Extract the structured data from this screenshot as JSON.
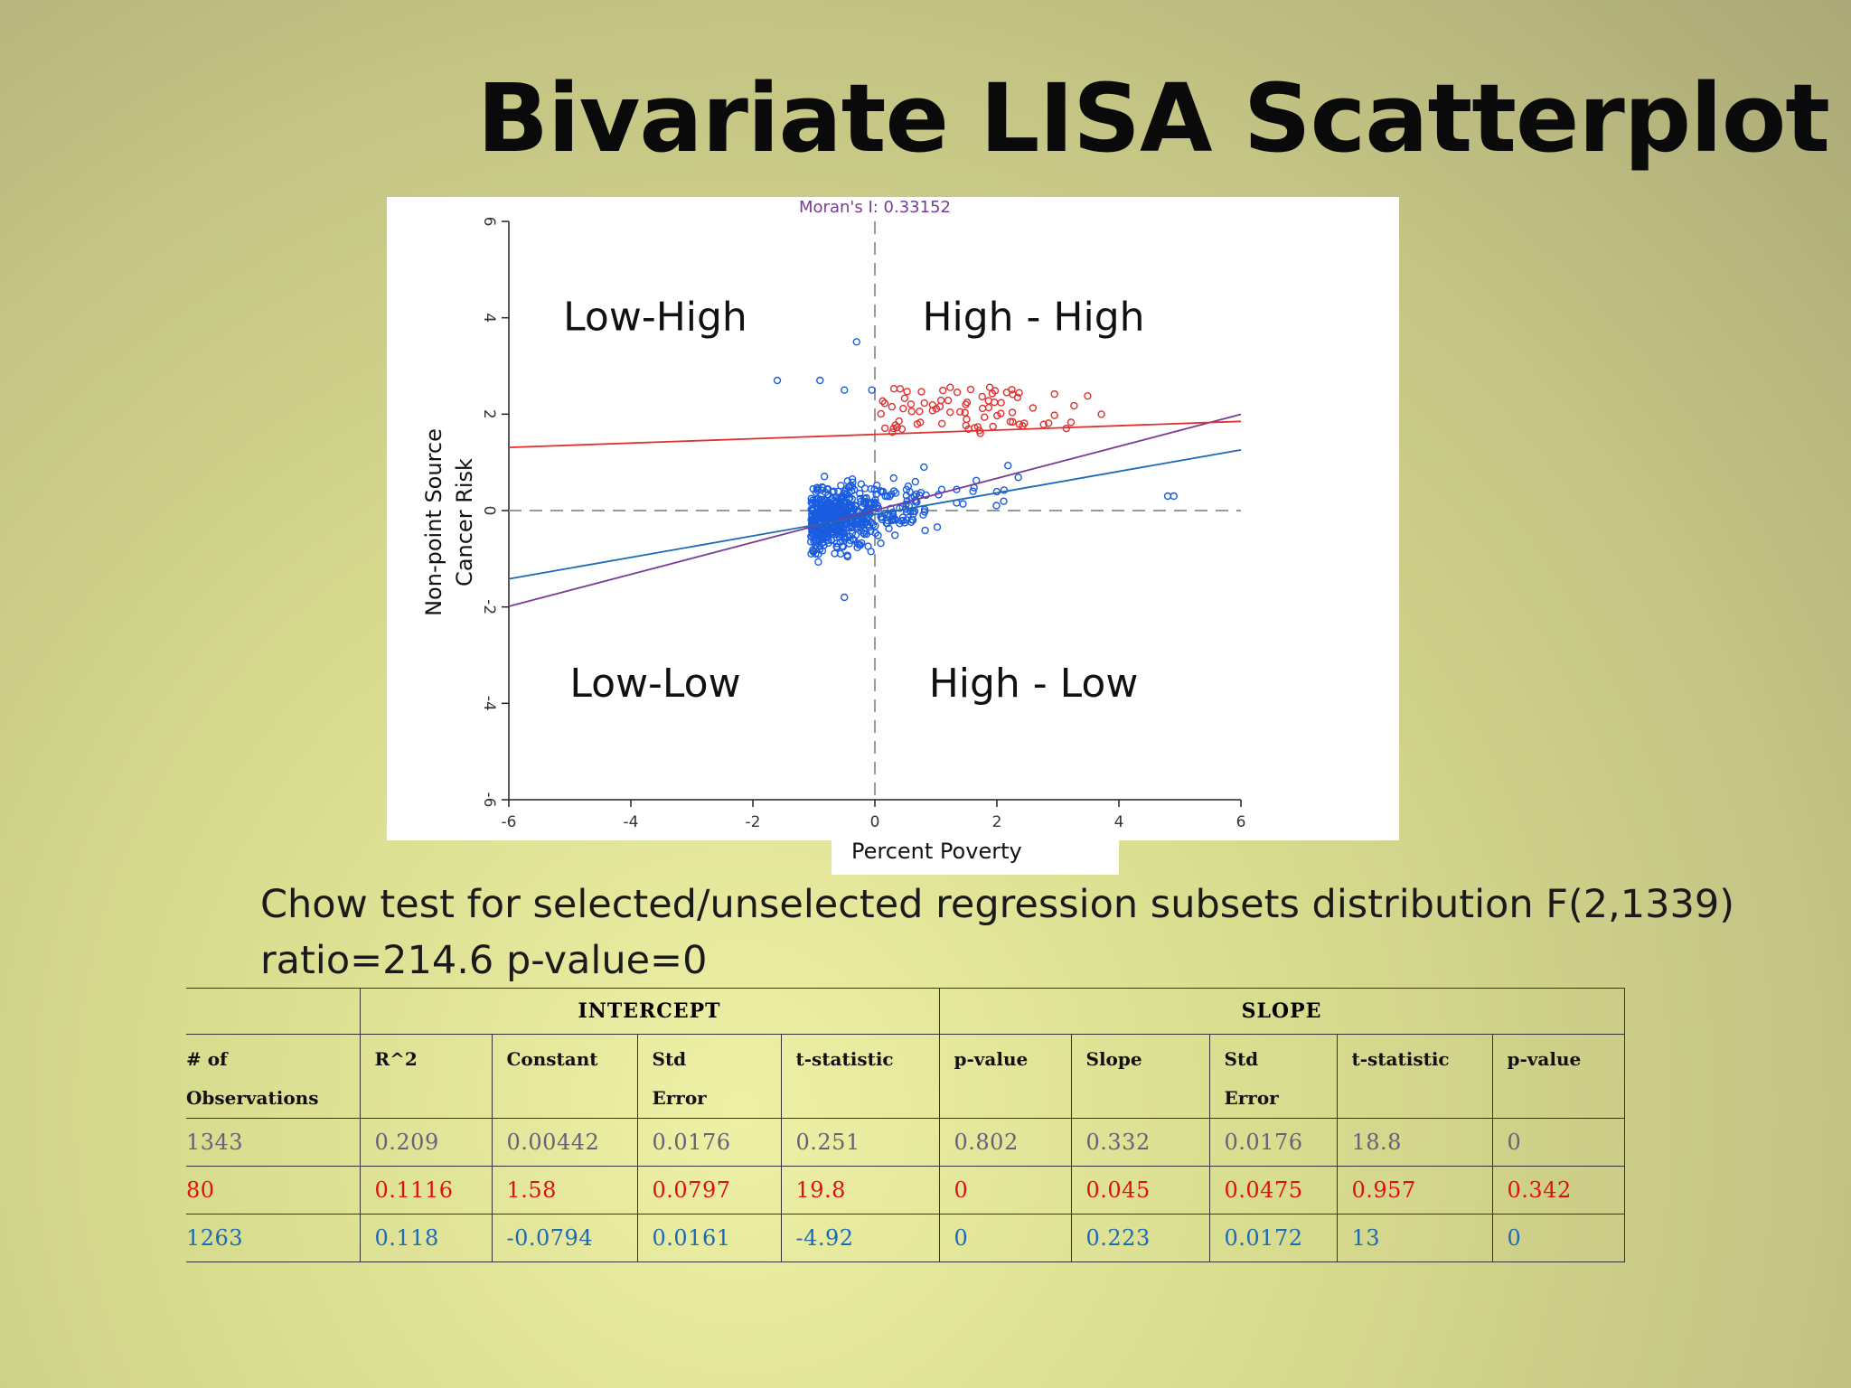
{
  "title": "Bivariate LISA Scatterplot",
  "colors": {
    "all": "#6a6078",
    "selected": "#e01010",
    "unselected": "#1a6ab8",
    "fit_all": "#7a3b94",
    "points_sel": "#e03030",
    "points_unsel": "#1a5ce0"
  },
  "chart_data": {
    "type": "scatter",
    "title": "Moran's I: 0.33152",
    "xlabel": "Percent Poverty",
    "ylabel": "Non-point Source Cancer Risk",
    "xlim": [
      -6,
      6
    ],
    "ylim": [
      -6,
      6
    ],
    "x_ticks": [
      "-6",
      "-4",
      "-2",
      "0",
      "2",
      "4",
      "6"
    ],
    "y_ticks": [
      "6",
      "4",
      "2",
      "0",
      "-2",
      "-4",
      "-6"
    ],
    "quadrants": [
      "Low-High",
      "High - High",
      "Low-Low",
      "High - Low"
    ],
    "grid": false,
    "reference_lines": {
      "x": 0,
      "y": 0,
      "style": "dashed"
    },
    "series": [
      {
        "color": "#e03030",
        "count": 80,
        "x_range": [
          0,
          4
        ],
        "y_range": [
          1.6,
          2.8
        ]
      },
      {
        "color": "#1a5ce0",
        "count": 1263,
        "x_range": [
          -1.1,
          4.9
        ],
        "y_range": [
          -1.8,
          3.5
        ]
      }
    ],
    "fit_lines": [
      {
        "color": "#7a3b94",
        "intercept": 0.00442,
        "slope": 0.332
      },
      {
        "color": "#e03030",
        "intercept": 1.58,
        "slope": 0.045
      },
      {
        "color": "#1a6ab8",
        "intercept": -0.0794,
        "slope": 0.223
      }
    ]
  },
  "chow_text": "Chow test for selected/unselected regression subsets distribution F(2,1339)",
  "chow_ratio": "ratio=214.6 p-value=0",
  "table": {
    "group_intercept": "INTERCEPT",
    "group_slope": "SLOPE",
    "headers": [
      [
        "# of",
        "Observations"
      ],
      [
        "R^2"
      ],
      [
        "Constant"
      ],
      [
        "Std",
        "Error"
      ],
      [
        "t-statistic"
      ],
      [
        "p-value"
      ],
      [
        "Slope"
      ],
      [
        "Std",
        "Error"
      ],
      [
        "t-statistic"
      ],
      [
        "p-value"
      ]
    ],
    "rows": [
      [
        "1343",
        "0.209",
        "0.00442",
        "0.0176",
        "0.251",
        "0.802",
        "0.332",
        "0.0176",
        "18.8",
        "0"
      ],
      [
        "80",
        "0.1116",
        "1.58",
        "0.0797",
        "19.8",
        "0",
        "0.045",
        "0.0475",
        "0.957",
        "0.342"
      ],
      [
        "1263",
        "0.118",
        "-0.0794",
        "0.0161",
        "-4.92",
        "0",
        "0.223",
        "0.0172",
        "13",
        "0"
      ]
    ]
  }
}
